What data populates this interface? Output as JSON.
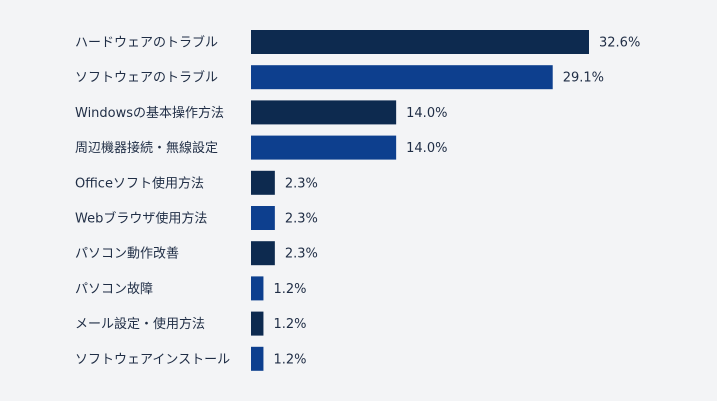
{
  "chart_data": {
    "type": "bar",
    "orientation": "horizontal",
    "categories": [
      "ハードウェアのトラブル",
      "ソフトウェアのトラブル",
      "Windowsの基本操作方法",
      "周辺機器接続・無線設定",
      "Officeソフト使用方法",
      "Webブラウザ使用方法",
      "パソコン動作改善",
      "パソコン故障",
      "メール設定・使用方法",
      "ソフトウェアインストール"
    ],
    "values": [
      32.6,
      29.1,
      14.0,
      14.0,
      2.3,
      2.3,
      2.3,
      1.2,
      1.2,
      1.2
    ],
    "value_labels": [
      "32.6%",
      "29.1%",
      "14.0%",
      "14.0%",
      "2.3%",
      "2.3%",
      "2.3%",
      "1.2%",
      "1.2%",
      "1.2%"
    ],
    "unit": "%",
    "colors": [
      "#0d2a4f",
      "#0d3f8e"
    ],
    "grid": false,
    "title": "",
    "xlabel": "",
    "ylabel": ""
  }
}
